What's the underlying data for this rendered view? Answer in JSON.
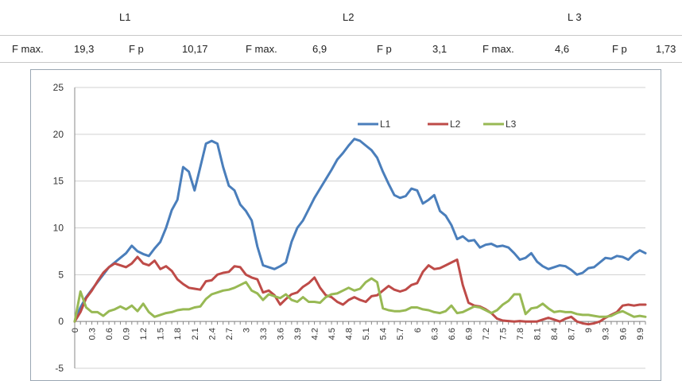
{
  "table": {
    "row1": {
      "c1": "L1",
      "c2": "L2",
      "c3": "L 3"
    },
    "row2": {
      "a": "F max.",
      "b": "19,3",
      "c": "F p",
      "d": "10,17",
      "e": "F max.",
      "f": "6,9",
      "g": "F p",
      "h": "3,1",
      "i": "F max.",
      "j": "4,6",
      "k": "F p",
      "l": "1,73"
    }
  },
  "chart_data": {
    "type": "line",
    "title": "",
    "xlabel": "",
    "ylabel": "",
    "ylim": [
      -5,
      25
    ],
    "yticks": [
      -5,
      0,
      5,
      10,
      15,
      20,
      25
    ],
    "xlim": [
      0,
      10.0
    ],
    "xtick_labels": [
      "0",
      "0.3",
      "0.6",
      "0.9",
      "1.2",
      "1.5",
      "1.8",
      "2.1",
      "2.4",
      "2.7",
      "3",
      "3.3",
      "3.6",
      "3.9",
      "4.2",
      "4.5",
      "4.8",
      "5.1",
      "5.4",
      "5.7",
      "6",
      "6.3",
      "6.6",
      "6.9",
      "7.2",
      "7.5",
      "7.8",
      "8.1",
      "8.4",
      "8.7",
      "9",
      "9.3",
      "9.6",
      "9.9"
    ],
    "grid": "horizontal",
    "legend_position": "top-right",
    "series": [
      {
        "name": "L1",
        "color": "#4a7ebb",
        "x": [
          0,
          0.1,
          0.2,
          0.3,
          0.4,
          0.5,
          0.6,
          0.7,
          0.8,
          0.9,
          1.0,
          1.1,
          1.2,
          1.3,
          1.4,
          1.5,
          1.6,
          1.7,
          1.8,
          1.9,
          2.0,
          2.1,
          2.2,
          2.3,
          2.4,
          2.5,
          2.6,
          2.7,
          2.8,
          2.9,
          3.0,
          3.1,
          3.2,
          3.3,
          3.4,
          3.5,
          3.6,
          3.7,
          3.8,
          3.9,
          4.0,
          4.1,
          4.2,
          4.3,
          4.4,
          4.5,
          4.6,
          4.7,
          4.8,
          4.9,
          5.0,
          5.1,
          5.2,
          5.3,
          5.4,
          5.5,
          5.6,
          5.7,
          5.8,
          5.9,
          6.0,
          6.1,
          6.2,
          6.3,
          6.4,
          6.5,
          6.6,
          6.7,
          6.8,
          6.9,
          7.0,
          7.1,
          7.2,
          7.3,
          7.4,
          7.5,
          7.6,
          7.7,
          7.8,
          7.9,
          8.0,
          8.1,
          8.2,
          8.3,
          8.4,
          8.5,
          8.6,
          8.7,
          8.8,
          8.9,
          9.0,
          9.1,
          9.2,
          9.3,
          9.4,
          9.5,
          9.6,
          9.7,
          9.8,
          9.9,
          10.0
        ],
        "y": [
          0,
          1.5,
          2.6,
          3.4,
          4.2,
          5.0,
          5.8,
          6.3,
          6.8,
          7.3,
          8.1,
          7.5,
          7.2,
          7.0,
          7.8,
          8.5,
          10.0,
          11.9,
          13.0,
          16.5,
          16.0,
          14.0,
          16.5,
          19.0,
          19.3,
          19.0,
          16.5,
          14.5,
          14.0,
          12.5,
          11.8,
          10.8,
          8.0,
          6.0,
          5.8,
          5.6,
          5.9,
          6.3,
          8.5,
          10.0,
          10.8,
          12.0,
          13.2,
          14.2,
          15.2,
          16.2,
          17.3,
          18.0,
          18.8,
          19.5,
          19.3,
          18.8,
          18.3,
          17.5,
          16.0,
          14.7,
          13.5,
          13.2,
          13.4,
          14.2,
          14.0,
          12.6,
          13.0,
          13.5,
          11.8,
          11.3,
          10.3,
          8.8,
          9.1,
          8.6,
          8.7,
          7.9,
          8.2,
          8.3,
          8.0,
          8.1,
          7.9,
          7.3,
          6.6,
          6.8,
          7.3,
          6.4,
          5.9,
          5.6,
          5.8,
          6.0,
          5.9,
          5.5,
          5.0,
          5.2,
          5.7,
          5.8,
          6.3,
          6.8,
          6.7,
          7.0,
          6.9,
          6.6,
          7.2,
          7.6,
          7.3
        ]
      },
      {
        "name": "L2",
        "color": "#be4b48",
        "x": [
          0,
          0.1,
          0.2,
          0.3,
          0.4,
          0.5,
          0.6,
          0.7,
          0.8,
          0.9,
          1.0,
          1.1,
          1.2,
          1.3,
          1.4,
          1.5,
          1.6,
          1.7,
          1.8,
          1.9,
          2.0,
          2.1,
          2.2,
          2.3,
          2.4,
          2.5,
          2.6,
          2.7,
          2.8,
          2.9,
          3.0,
          3.1,
          3.2,
          3.3,
          3.4,
          3.5,
          3.6,
          3.7,
          3.8,
          3.9,
          4.0,
          4.1,
          4.2,
          4.3,
          4.4,
          4.5,
          4.6,
          4.7,
          4.8,
          4.9,
          5.0,
          5.1,
          5.2,
          5.3,
          5.4,
          5.5,
          5.6,
          5.7,
          5.8,
          5.9,
          6.0,
          6.1,
          6.2,
          6.3,
          6.4,
          6.5,
          6.6,
          6.7,
          6.8,
          6.9,
          7.0,
          7.1,
          7.2,
          7.3,
          7.4,
          7.5,
          7.6,
          7.7,
          7.8,
          7.9,
          8.0,
          8.1,
          8.2,
          8.3,
          8.4,
          8.5,
          8.6,
          8.7,
          8.8,
          8.9,
          9.0,
          9.1,
          9.2,
          9.3,
          9.4,
          9.5,
          9.6,
          9.7,
          9.8,
          9.9,
          10.0
        ],
        "y": [
          0,
          1.0,
          2.5,
          3.3,
          4.3,
          5.2,
          5.8,
          6.2,
          6.0,
          5.8,
          6.2,
          6.9,
          6.2,
          6.0,
          6.5,
          5.6,
          5.9,
          5.4,
          4.5,
          4.0,
          3.6,
          3.5,
          3.4,
          4.3,
          4.4,
          5.0,
          5.2,
          5.3,
          5.9,
          5.8,
          5.0,
          4.7,
          4.5,
          3.1,
          3.3,
          2.8,
          1.8,
          2.4,
          2.9,
          3.1,
          3.7,
          4.1,
          4.7,
          3.6,
          2.8,
          2.6,
          2.1,
          1.8,
          2.3,
          2.6,
          2.3,
          2.1,
          2.7,
          2.8,
          3.3,
          3.8,
          3.4,
          3.2,
          3.4,
          3.9,
          4.1,
          5.3,
          6.0,
          5.6,
          5.7,
          6.0,
          6.3,
          6.6,
          3.9,
          2.0,
          1.7,
          1.6,
          1.3,
          0.9,
          0.3,
          0.1,
          0.05,
          0.0,
          0.05,
          0.0,
          0.0,
          0.0,
          0.2,
          0.4,
          0.2,
          0.0,
          0.3,
          0.5,
          0.0,
          -0.2,
          -0.3,
          -0.2,
          0.0,
          0.4,
          0.7,
          1.0,
          1.7,
          1.8,
          1.7,
          1.8,
          1.8
        ]
      },
      {
        "name": "L3",
        "color": "#98b954",
        "x": [
          0,
          0.1,
          0.2,
          0.3,
          0.4,
          0.5,
          0.6,
          0.7,
          0.8,
          0.9,
          1.0,
          1.1,
          1.2,
          1.3,
          1.4,
          1.5,
          1.6,
          1.7,
          1.8,
          1.9,
          2.0,
          2.1,
          2.2,
          2.3,
          2.4,
          2.5,
          2.6,
          2.7,
          2.8,
          2.9,
          3.0,
          3.1,
          3.2,
          3.3,
          3.4,
          3.5,
          3.6,
          3.7,
          3.8,
          3.9,
          4.0,
          4.1,
          4.2,
          4.3,
          4.4,
          4.5,
          4.6,
          4.7,
          4.8,
          4.9,
          5.0,
          5.1,
          5.2,
          5.3,
          5.4,
          5.5,
          5.6,
          5.7,
          5.8,
          5.9,
          6.0,
          6.1,
          6.2,
          6.3,
          6.4,
          6.5,
          6.6,
          6.7,
          6.8,
          6.9,
          7.0,
          7.1,
          7.2,
          7.3,
          7.4,
          7.5,
          7.6,
          7.7,
          7.8,
          7.9,
          8.0,
          8.1,
          8.2,
          8.3,
          8.4,
          8.5,
          8.6,
          8.7,
          8.8,
          8.9,
          9.0,
          9.1,
          9.2,
          9.3,
          9.4,
          9.5,
          9.6,
          9.7,
          9.8,
          9.9,
          10.0
        ],
        "y": [
          0,
          3.2,
          1.5,
          1.0,
          1.0,
          0.6,
          1.1,
          1.3,
          1.6,
          1.3,
          1.7,
          1.1,
          1.9,
          1.0,
          0.5,
          0.7,
          0.9,
          1.0,
          1.2,
          1.3,
          1.3,
          1.5,
          1.6,
          2.4,
          2.9,
          3.1,
          3.3,
          3.4,
          3.6,
          3.9,
          4.2,
          3.3,
          3.0,
          2.3,
          2.9,
          2.7,
          2.5,
          2.9,
          2.3,
          2.1,
          2.6,
          2.1,
          2.1,
          2.0,
          2.6,
          2.9,
          3.0,
          3.3,
          3.6,
          3.3,
          3.5,
          4.2,
          4.6,
          4.2,
          1.4,
          1.2,
          1.1,
          1.1,
          1.2,
          1.5,
          1.5,
          1.3,
          1.2,
          1.0,
          0.9,
          1.1,
          1.7,
          0.9,
          1.0,
          1.3,
          1.6,
          1.5,
          1.2,
          0.9,
          1.2,
          1.8,
          2.2,
          2.9,
          2.9,
          0.8,
          1.4,
          1.5,
          1.9,
          1.4,
          1.0,
          1.1,
          1.0,
          1.0,
          0.8,
          0.7,
          0.7,
          0.6,
          0.5,
          0.5,
          0.6,
          0.9,
          1.1,
          0.8,
          0.5,
          0.6,
          0.5
        ]
      }
    ]
  }
}
